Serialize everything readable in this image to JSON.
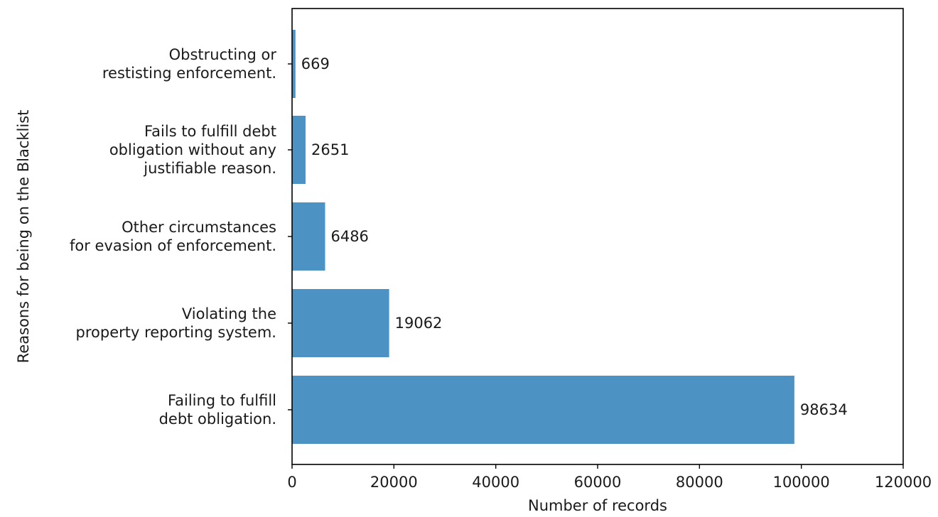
{
  "chart_data": {
    "type": "bar",
    "orientation": "horizontal",
    "categories": [
      [
        "Failing to fulfill",
        "debt obligation."
      ],
      [
        "Violating the",
        "property reporting system."
      ],
      [
        "Other circumstances",
        "for evasion of enforcement."
      ],
      [
        "Fails to fulfill debt",
        "obligation without any",
        "justifiable reason."
      ],
      [
        "Obstructing or",
        "restisting enforcement."
      ]
    ],
    "values": [
      98634,
      19062,
      6486,
      2651,
      669
    ],
    "data_labels": [
      "98634",
      "19062",
      "6486",
      "2651",
      "669"
    ],
    "xlabel": "Number of records",
    "ylabel": "Reasons for being on the Blacklist",
    "xlim": [
      0,
      120000
    ],
    "xticks": [
      0,
      20000,
      40000,
      60000,
      80000,
      100000,
      120000
    ],
    "xtick_labels": [
      "0",
      "20000",
      "40000",
      "60000",
      "80000",
      "100000",
      "120000"
    ],
    "bar_color": "#4c92c3",
    "grid": false,
    "legend": "none"
  }
}
